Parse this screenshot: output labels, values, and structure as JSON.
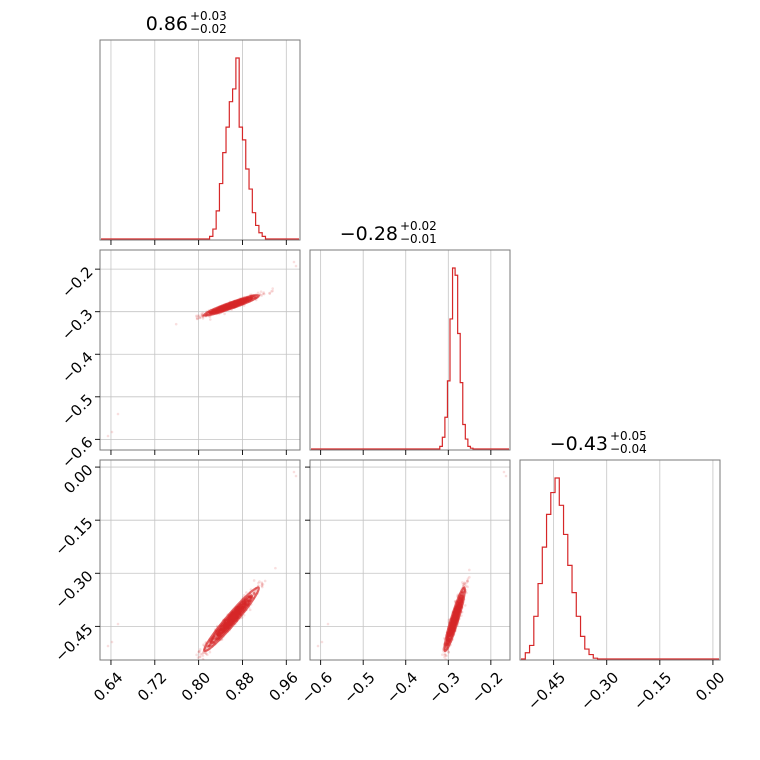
{
  "chart_data": {
    "type": "corner",
    "color": "#d62728",
    "parameters": [
      {
        "median": "0.86",
        "plus": "+0.03",
        "minus": "−0.02",
        "range": [
          0.62,
          0.985
        ],
        "ticks": [
          0.64,
          0.72,
          0.8,
          0.88,
          0.96
        ],
        "tick_labels": [
          "0.64",
          "0.72",
          "0.80",
          "0.88",
          "0.96"
        ]
      },
      {
        "median": "−0.28",
        "plus": "+0.02",
        "minus": "−0.01",
        "range": [
          -0.625,
          -0.155
        ],
        "ticks": [
          -0.6,
          -0.5,
          -0.4,
          -0.3,
          -0.2
        ],
        "tick_labels": [
          "−0.6",
          "−0.5",
          "−0.4",
          "−0.3",
          "−0.2"
        ]
      },
      {
        "median": "−0.43",
        "plus": "+0.05",
        "minus": "−0.04",
        "range": [
          -0.545,
          0.02
        ],
        "ticks": [
          -0.45,
          -0.3,
          -0.15,
          0.0
        ],
        "tick_labels": [
          "−0.45",
          "−0.30",
          "−0.15",
          "0.00"
        ]
      }
    ],
    "histograms": [
      {
        "param": 0,
        "bins": [
          0.82,
          0.826,
          0.832,
          0.838,
          0.844,
          0.85,
          0.856,
          0.862,
          0.868,
          0.874,
          0.88,
          0.886,
          0.892,
          0.898,
          0.904,
          0.91,
          0.916
        ],
        "heights": [
          0.02,
          0.06,
          0.16,
          0.31,
          0.48,
          0.62,
          0.76,
          0.83,
          1.0,
          0.62,
          0.55,
          0.39,
          0.28,
          0.15,
          0.08,
          0.04,
          0.02
        ]
      },
      {
        "param": 1,
        "bins": [
          -0.32,
          -0.314,
          -0.308,
          -0.302,
          -0.296,
          -0.29,
          -0.284,
          -0.278,
          -0.272,
          -0.266,
          -0.26,
          -0.254,
          -0.248
        ],
        "heights": [
          0.02,
          0.07,
          0.18,
          0.38,
          0.72,
          1.0,
          0.96,
          0.64,
          0.37,
          0.14,
          0.06,
          0.02,
          0.01
        ]
      },
      {
        "param": 2,
        "bins": [
          -0.53,
          -0.518,
          -0.506,
          -0.494,
          -0.482,
          -0.47,
          -0.458,
          -0.446,
          -0.434,
          -0.422,
          -0.41,
          -0.398,
          -0.386,
          -0.374,
          -0.362,
          -0.35,
          -0.338
        ],
        "heights": [
          0.04,
          0.08,
          0.24,
          0.42,
          0.62,
          0.8,
          0.92,
          1.0,
          0.85,
          0.69,
          0.52,
          0.37,
          0.24,
          0.13,
          0.06,
          0.03,
          0.01
        ]
      }
    ],
    "correlations": [
      {
        "x": 0,
        "y": 1,
        "center": [
          0.86,
          -0.285
        ],
        "sd": [
          0.025,
          0.012
        ],
        "rho": 0.95
      },
      {
        "x": 0,
        "y": 2,
        "center": [
          0.86,
          -0.43
        ],
        "sd": [
          0.025,
          0.045
        ],
        "rho": 0.97
      },
      {
        "x": 1,
        "y": 2,
        "center": [
          -0.285,
          -0.43
        ],
        "sd": [
          0.012,
          0.045
        ],
        "rho": 0.93
      }
    ]
  }
}
